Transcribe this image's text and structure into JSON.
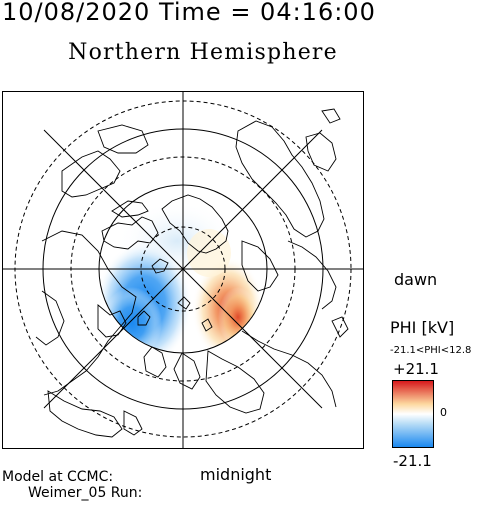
{
  "header": {
    "datetime": "10/08/2020 Time = 04:16:00",
    "hemisphere": "Northern Hemisphere"
  },
  "map": {
    "projection": "polar",
    "pole": "north",
    "top_label": "",
    "bottom_label": "midnight",
    "right_label": "dawn",
    "potential_pattern": [
      {
        "name": "dusk-cell",
        "sign": "negative",
        "color": "#2a86ee"
      },
      {
        "name": "dawn-cell",
        "sign": "positive",
        "color": "#e5522e"
      }
    ]
  },
  "legend": {
    "title": "PHI [kV]",
    "range_text": "-21.1<PHI<12.8",
    "max_label": "+21.1",
    "zero_label": "0",
    "min_label": "-21.1",
    "colors": {
      "top": "#d7191c",
      "upper_mid": "#fdd9a0",
      "middle": "#ffffff",
      "lower_mid": "#b7dcf6",
      "bottom": "#1a88f0"
    }
  },
  "footer": {
    "model_line1": "Model at CCMC:",
    "model_line2": "Weimer_05 Run:"
  }
}
